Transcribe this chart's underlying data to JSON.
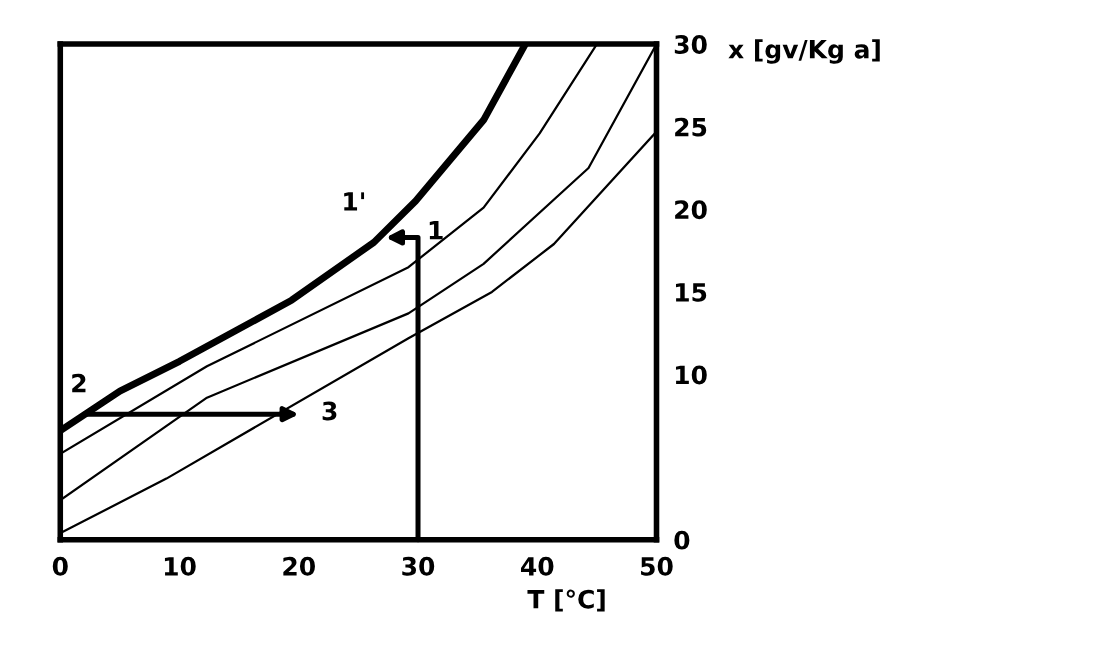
{
  "chart_data": {
    "type": "line",
    "xlabel": "T [°C]",
    "ylabel": "x [gv/Kg a]",
    "xlim": [
      0,
      50
    ],
    "xticks": [
      0,
      10,
      20,
      30,
      40,
      50
    ],
    "ylim": [
      0,
      30
    ],
    "yticks": [
      0,
      10,
      15,
      20,
      25,
      30
    ],
    "grid": false,
    "legend": false,
    "tick_labels": "xy",
    "marker": "none",
    "line_style": "solid",
    "series": [
      {
        "color": "#000000",
        "x": [
          0,
          5,
          10,
          19.4,
          26.3,
          29.8,
          35.5,
          39
        ],
        "values": [
          6.6,
          9,
          10.8,
          14.5,
          18,
          20.5,
          25.4,
          30
        ]
      },
      {
        "color": "#000000",
        "x": [
          0,
          12.3,
          29.2,
          35.5,
          40.2,
          45
        ],
        "values": [
          5.2,
          10.5,
          16.5,
          20.1,
          24.6,
          30
        ]
      },
      {
        "color": "#000000",
        "x": [
          0,
          12.3,
          29.2,
          35.5,
          44.3,
          50
        ],
        "values": [
          2.4,
          8.6,
          13.7,
          16.7,
          22.5,
          30
        ]
      },
      {
        "color": "#000000",
        "x": [
          0,
          8.9,
          29.2,
          36.2,
          41.4,
          50
        ],
        "values": [
          0.4,
          3.7,
          12.2,
          15,
          17.9,
          24.7
        ]
      }
    ],
    "annotations": [
      "1",
      {
        "text": "1'",
        "x": 27.3,
        "y": 18.6
      },
      {
        "text": "2",
        "x": 2,
        "y": 7.6
      },
      {
        "text": "3",
        "x": 20,
        "y": 7.6
      }
    ]
  }
}
